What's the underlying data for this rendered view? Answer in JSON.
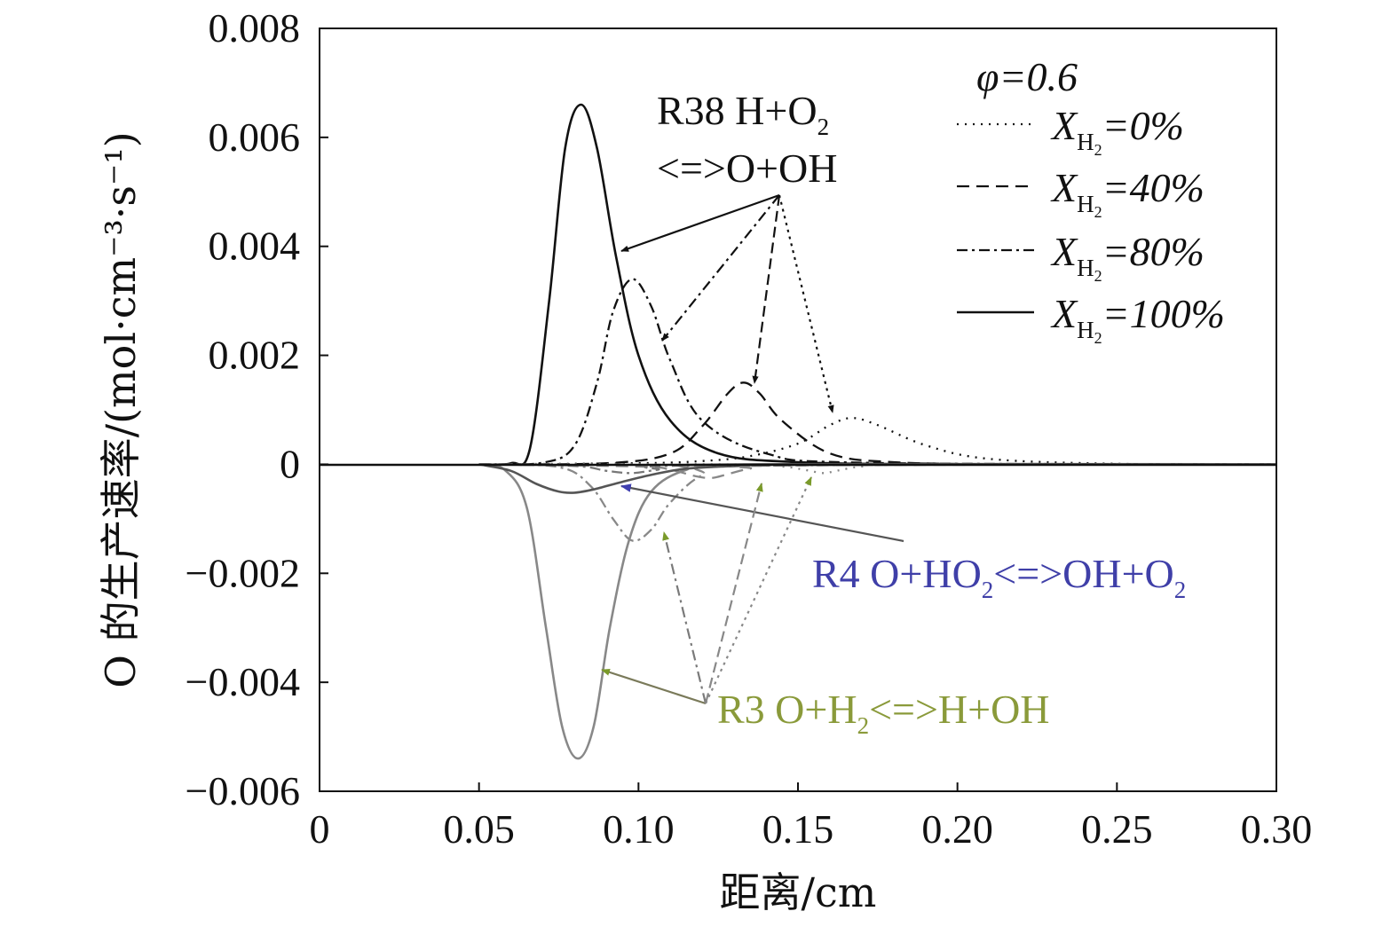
{
  "chart_data": {
    "type": "line",
    "xlabel": "距离/cm",
    "ylabel": "O 的生产速率/(mol·cm⁻³·s⁻¹)",
    "xlim": [
      0,
      0.3
    ],
    "ylim": [
      -0.006,
      0.008
    ],
    "x_ticks": [
      0,
      0.05,
      0.1,
      0.15,
      0.2,
      0.25,
      0.3
    ],
    "x_tick_labels": [
      "0",
      "0.05",
      "0.10",
      "0.15",
      "0.20",
      "0.25",
      "0.30"
    ],
    "y_ticks": [
      -0.006,
      -0.004,
      -0.002,
      0,
      0.002,
      0.004,
      0.006,
      0.008
    ],
    "y_tick_labels": [
      "−0.006",
      "−0.004",
      "−0.002",
      "0",
      "0.002",
      "0.004",
      "0.006",
      "0.008"
    ],
    "grid": false,
    "legend": {
      "position": "top-right",
      "title": "φ=0.6",
      "entries": [
        {
          "style": "dotted",
          "label": "=0%"
        },
        {
          "style": "dashed",
          "label": "=40%"
        },
        {
          "style": "dashdot",
          "label": "=80%"
        },
        {
          "style": "solid",
          "label": "=100%"
        }
      ],
      "var_symbol": "X",
      "var_sub": "H",
      "var_subsub": "2"
    },
    "annotations": {
      "r38_line1": "R38 H+O",
      "r38_sub": "2",
      "r38_line2": "<=>O+OH",
      "r4_a": "R4 O+HO",
      "r4_sub1": "2",
      "r4_b": "<=>OH+O",
      "r4_sub2": "2",
      "r3_a": "R3 O+H",
      "r3_sub": "2",
      "r3_b": "<=>H+OH"
    },
    "series": [
      {
        "mix": "0%",
        "reaction": "R38",
        "style": "dotted",
        "color": "#111111",
        "x": [
          0.05,
          0.1,
          0.12,
          0.135,
          0.15,
          0.16,
          0.167,
          0.175,
          0.19,
          0.21,
          0.25,
          0.3
        ],
        "y": [
          0.0,
          2e-05,
          6e-05,
          0.00015,
          0.00038,
          0.00072,
          0.00085,
          0.00072,
          0.00035,
          0.0001,
          1e-05,
          0.0
        ]
      },
      {
        "mix": "40%",
        "reaction": "R38",
        "style": "dashed",
        "color": "#111111",
        "x": [
          0.05,
          0.09,
          0.11,
          0.12,
          0.128,
          0.133,
          0.138,
          0.145,
          0.16,
          0.18,
          0.22,
          0.3
        ],
        "y": [
          0.0,
          2e-05,
          0.0002,
          0.0007,
          0.0013,
          0.0015,
          0.0013,
          0.0008,
          0.0002,
          4e-05,
          0.0,
          0.0
        ]
      },
      {
        "mix": "80%",
        "reaction": "R38",
        "style": "dashdot",
        "color": "#111111",
        "x": [
          0.05,
          0.07,
          0.08,
          0.087,
          0.092,
          0.098,
          0.104,
          0.11,
          0.12,
          0.14,
          0.17,
          0.3
        ],
        "y": [
          0.0,
          3e-05,
          0.00035,
          0.0015,
          0.0028,
          0.0034,
          0.0029,
          0.0019,
          0.0008,
          0.0002,
          3e-05,
          0.0
        ]
      },
      {
        "mix": "100%",
        "reaction": "R38",
        "style": "solid",
        "color": "#111111",
        "x": [
          0.05,
          0.06,
          0.066,
          0.072,
          0.077,
          0.082,
          0.087,
          0.093,
          0.1,
          0.11,
          0.125,
          0.15,
          0.2,
          0.3
        ],
        "y": [
          0.0,
          2e-05,
          0.0003,
          0.003,
          0.0058,
          0.0066,
          0.0058,
          0.0038,
          0.002,
          0.0008,
          0.0002,
          4e-05,
          0.0,
          0.0
        ]
      },
      {
        "mix": "0%",
        "reaction": "R3",
        "style": "dotted",
        "color": "#888888",
        "x": [
          0.05,
          0.13,
          0.145,
          0.152,
          0.158,
          0.162,
          0.17,
          0.185,
          0.3
        ],
        "y": [
          0.0,
          0.0,
          -4e-05,
          -0.0001,
          -0.00016,
          -0.00012,
          -4e-05,
          0.0,
          0.0
        ]
      },
      {
        "mix": "40%",
        "reaction": "R3",
        "style": "dashed",
        "color": "#888888",
        "x": [
          0.05,
          0.1,
          0.11,
          0.118,
          0.123,
          0.128,
          0.135,
          0.145,
          0.3
        ],
        "y": [
          0.0,
          -4e-05,
          -0.0001,
          -0.00022,
          -0.00025,
          -0.00018,
          -8e-05,
          -2e-05,
          0.0
        ]
      },
      {
        "mix": "80%",
        "reaction": "R3",
        "style": "dashdot",
        "color": "#888888",
        "x": [
          0.05,
          0.075,
          0.085,
          0.092,
          0.098,
          0.104,
          0.11,
          0.12,
          0.135,
          0.3
        ],
        "y": [
          0.0,
          -5e-05,
          -0.0004,
          -0.001,
          -0.0014,
          -0.0012,
          -0.0007,
          -0.0002,
          -3e-05,
          0.0
        ]
      },
      {
        "mix": "100%",
        "reaction": "R3",
        "style": "solid",
        "color": "#888888",
        "x": [
          0.05,
          0.058,
          0.065,
          0.071,
          0.076,
          0.081,
          0.086,
          0.091,
          0.097,
          0.104,
          0.115,
          0.13,
          0.3
        ],
        "y": [
          0.0,
          -0.0001,
          -0.0008,
          -0.003,
          -0.0048,
          -0.0054,
          -0.0048,
          -0.003,
          -0.0014,
          -0.0005,
          -0.0001,
          0.0,
          0.0
        ]
      },
      {
        "mix": "100%",
        "reaction": "R4",
        "style": "solid",
        "color": "#555555",
        "x": [
          0.05,
          0.06,
          0.068,
          0.075,
          0.08,
          0.086,
          0.095,
          0.105,
          0.115,
          0.13,
          0.15,
          0.3
        ],
        "y": [
          0.0,
          -0.00012,
          -0.00036,
          -0.0005,
          -0.00052,
          -0.00046,
          -0.00032,
          -0.00018,
          -8e-05,
          -3e-05,
          0.0,
          0.0
        ]
      },
      {
        "mix": "80%",
        "reaction": "R4",
        "style": "dashdot",
        "color": "#777777",
        "x": [
          0.05,
          0.08,
          0.09,
          0.098,
          0.106,
          0.12,
          0.3
        ],
        "y": [
          0.0,
          -3e-05,
          -0.00012,
          -0.00016,
          -0.0001,
          -2e-05,
          0.0
        ]
      }
    ]
  }
}
